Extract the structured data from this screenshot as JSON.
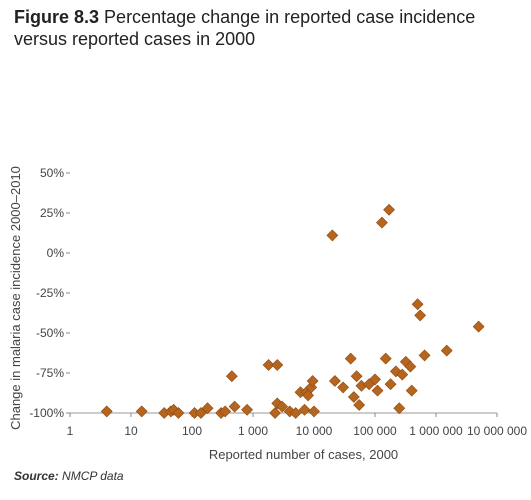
{
  "figure": {
    "label": "Figure 8.3",
    "title": "Percentage change in reported case incidence versus reported cases in 2000"
  },
  "source": {
    "label": "Source:",
    "text": "NMCP data"
  },
  "chart_data": {
    "type": "scatter",
    "xlabel": "Reported number of cases, 2000",
    "ylabel": "Change in malaria case incidence 2000–2010",
    "x_scale": "log",
    "xlim": [
      1,
      10000000
    ],
    "ylim": [
      -100,
      50
    ],
    "x_ticks": [
      1,
      10,
      100,
      1000,
      10000,
      100000,
      1000000,
      10000000
    ],
    "x_tick_labels": [
      "1",
      "10",
      "100",
      "1 000",
      "10 000",
      "100 000",
      "1 000 000",
      "10 000 000"
    ],
    "y_ticks": [
      50,
      25,
      0,
      -25,
      -50,
      -75,
      -100
    ],
    "y_tick_labels": [
      "50%",
      "25%",
      "0%",
      "-25%",
      "-50%",
      "-75%",
      "-100%"
    ],
    "grid": false,
    "marker_color": "#b5651d",
    "points": [
      {
        "x": 4,
        "y": -99
      },
      {
        "x": 15,
        "y": -99
      },
      {
        "x": 35,
        "y": -100
      },
      {
        "x": 45,
        "y": -99
      },
      {
        "x": 50,
        "y": -98
      },
      {
        "x": 60,
        "y": -100
      },
      {
        "x": 110,
        "y": -100
      },
      {
        "x": 140,
        "y": -100
      },
      {
        "x": 180,
        "y": -97
      },
      {
        "x": 300,
        "y": -100
      },
      {
        "x": 350,
        "y": -99
      },
      {
        "x": 450,
        "y": -77
      },
      {
        "x": 500,
        "y": -96
      },
      {
        "x": 800,
        "y": -98
      },
      {
        "x": 1800,
        "y": -70
      },
      {
        "x": 2300,
        "y": -100
      },
      {
        "x": 2500,
        "y": -70
      },
      {
        "x": 2500,
        "y": -94
      },
      {
        "x": 3000,
        "y": -96
      },
      {
        "x": 4000,
        "y": -99
      },
      {
        "x": 5000,
        "y": -100
      },
      {
        "x": 6000,
        "y": -87
      },
      {
        "x": 7000,
        "y": -98
      },
      {
        "x": 7500,
        "y": -87
      },
      {
        "x": 8000,
        "y": -89
      },
      {
        "x": 9000,
        "y": -84
      },
      {
        "x": 9500,
        "y": -80
      },
      {
        "x": 10000,
        "y": -99
      },
      {
        "x": 20000,
        "y": 11
      },
      {
        "x": 22000,
        "y": -80
      },
      {
        "x": 30000,
        "y": -84
      },
      {
        "x": 40000,
        "y": -66
      },
      {
        "x": 45000,
        "y": -90
      },
      {
        "x": 50000,
        "y": -77
      },
      {
        "x": 55000,
        "y": -95
      },
      {
        "x": 60000,
        "y": -83
      },
      {
        "x": 80000,
        "y": -82
      },
      {
        "x": 100000,
        "y": -79
      },
      {
        "x": 110000,
        "y": -86
      },
      {
        "x": 130000,
        "y": 19
      },
      {
        "x": 150000,
        "y": -66
      },
      {
        "x": 170000,
        "y": 27
      },
      {
        "x": 180000,
        "y": -82
      },
      {
        "x": 220000,
        "y": -74
      },
      {
        "x": 250000,
        "y": -97
      },
      {
        "x": 280000,
        "y": -76
      },
      {
        "x": 320000,
        "y": -68
      },
      {
        "x": 380000,
        "y": -71
      },
      {
        "x": 400000,
        "y": -86
      },
      {
        "x": 500000,
        "y": -32
      },
      {
        "x": 550000,
        "y": -39
      },
      {
        "x": 650000,
        "y": -64
      },
      {
        "x": 1500000,
        "y": -61
      },
      {
        "x": 5000000,
        "y": -46
      }
    ]
  }
}
